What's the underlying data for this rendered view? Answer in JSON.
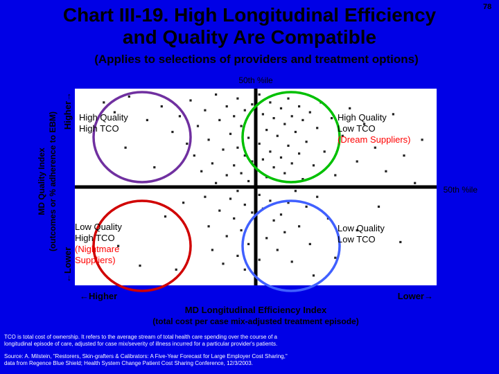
{
  "page_number": "78",
  "title_line1": "Chart III-19. High Longitudinal Efficiency",
  "title_line2": "and Quality Are Compatible",
  "subtitle": "(Applies to selections of providers and treatment options)",
  "chart_data": {
    "type": "scatter",
    "title": "Chart III-19. High Longitudinal Efficiency and Quality Are Compatible",
    "subtitle": "(Applies to selections of providers and treatment options)",
    "xlabel": "MD Longitudinal Efficiency Index",
    "xlabel_sub": "(total cost per case mix-adjusted treatment episode)",
    "ylabel": "MD Quality Index",
    "ylabel_sub": "(outcomes or % adherence to EBM)",
    "x_left_label": "←Higher",
    "x_right_label": "Lower→",
    "y_top_label": "Higher→",
    "y_bottom_label": "←Lower",
    "x_ref_label": "50th %ile",
    "y_ref_label": "50th %ile",
    "xlim": [
      0,
      100
    ],
    "ylim": [
      0,
      100
    ],
    "grid": false,
    "quadrants": [
      {
        "lines": [
          "High Quality",
          "High TCO"
        ],
        "highlight": "",
        "circle_color": "#7030a0",
        "position": "top-left"
      },
      {
        "lines": [
          "High Quality",
          "Low TCO"
        ],
        "highlight": "(Dream Suppliers)",
        "circle_color": "#00c000",
        "position": "top-right"
      },
      {
        "lines": [
          "Low Quality",
          "High TCO"
        ],
        "highlight": "(Nightmare Suppliers)",
        "circle_color": "#d00000",
        "position": "bottom-left"
      },
      {
        "lines": [
          "Low Quality",
          "Low TCO"
        ],
        "highlight": "",
        "circle_color": "#4060ff",
        "position": "bottom-right"
      }
    ],
    "colors": {
      "background": "#0000e6",
      "plot_area": "#ffffff",
      "highlight_text": "#ff0000",
      "reference_lines": "#000000"
    },
    "points": [
      {
        "x": 8,
        "y": 93
      },
      {
        "x": 11,
        "y": 88
      },
      {
        "x": 15,
        "y": 96
      },
      {
        "x": 20,
        "y": 84
      },
      {
        "x": 24,
        "y": 91
      },
      {
        "x": 27,
        "y": 78
      },
      {
        "x": 29,
        "y": 86
      },
      {
        "x": 31,
        "y": 72
      },
      {
        "x": 32,
        "y": 94
      },
      {
        "x": 33,
        "y": 66
      },
      {
        "x": 34,
        "y": 81
      },
      {
        "x": 35,
        "y": 58
      },
      {
        "x": 36,
        "y": 89
      },
      {
        "x": 36,
        "y": 45
      },
      {
        "x": 37,
        "y": 74
      },
      {
        "x": 37,
        "y": 30
      },
      {
        "x": 38,
        "y": 62
      },
      {
        "x": 38,
        "y": 18
      },
      {
        "x": 39,
        "y": 97
      },
      {
        "x": 39,
        "y": 52
      },
      {
        "x": 40,
        "y": 84
      },
      {
        "x": 40,
        "y": 38
      },
      {
        "x": 41,
        "y": 69
      },
      {
        "x": 41,
        "y": 11
      },
      {
        "x": 42,
        "y": 91
      },
      {
        "x": 42,
        "y": 56
      },
      {
        "x": 42,
        "y": 25
      },
      {
        "x": 43,
        "y": 77
      },
      {
        "x": 43,
        "y": 44
      },
      {
        "x": 44,
        "y": 86
      },
      {
        "x": 44,
        "y": 61
      },
      {
        "x": 44,
        "y": 34
      },
      {
        "x": 45,
        "y": 95
      },
      {
        "x": 45,
        "y": 70
      },
      {
        "x": 45,
        "y": 48
      },
      {
        "x": 45,
        "y": 15
      },
      {
        "x": 46,
        "y": 81
      },
      {
        "x": 46,
        "y": 57
      },
      {
        "x": 46,
        "y": 28
      },
      {
        "x": 47,
        "y": 89
      },
      {
        "x": 47,
        "y": 66
      },
      {
        "x": 47,
        "y": 41
      },
      {
        "x": 47,
        "y": 8
      },
      {
        "x": 48,
        "y": 75
      },
      {
        "x": 48,
        "y": 53
      },
      {
        "x": 48,
        "y": 21
      },
      {
        "x": 49,
        "y": 92
      },
      {
        "x": 49,
        "y": 63
      },
      {
        "x": 49,
        "y": 37
      },
      {
        "x": 50,
        "y": 83
      },
      {
        "x": 50,
        "y": 59
      },
      {
        "x": 50,
        "y": 31
      },
      {
        "x": 51,
        "y": 97
      },
      {
        "x": 51,
        "y": 72
      },
      {
        "x": 51,
        "y": 46
      },
      {
        "x": 51,
        "y": 13
      },
      {
        "x": 52,
        "y": 87
      },
      {
        "x": 52,
        "y": 64
      },
      {
        "x": 52,
        "y": 39
      },
      {
        "x": 53,
        "y": 79
      },
      {
        "x": 53,
        "y": 55
      },
      {
        "x": 53,
        "y": 24
      },
      {
        "x": 54,
        "y": 93
      },
      {
        "x": 54,
        "y": 68
      },
      {
        "x": 54,
        "y": 43
      },
      {
        "x": 55,
        "y": 85
      },
      {
        "x": 55,
        "y": 60
      },
      {
        "x": 55,
        "y": 33
      },
      {
        "x": 56,
        "y": 76
      },
      {
        "x": 56,
        "y": 50
      },
      {
        "x": 56,
        "y": 18
      },
      {
        "x": 57,
        "y": 90
      },
      {
        "x": 57,
        "y": 65
      },
      {
        "x": 57,
        "y": 36
      },
      {
        "x": 58,
        "y": 82
      },
      {
        "x": 58,
        "y": 57
      },
      {
        "x": 58,
        "y": 27
      },
      {
        "x": 59,
        "y": 95
      },
      {
        "x": 59,
        "y": 71
      },
      {
        "x": 59,
        "y": 42
      },
      {
        "x": 60,
        "y": 86
      },
      {
        "x": 60,
        "y": 62
      },
      {
        "x": 60,
        "y": 12
      },
      {
        "x": 61,
        "y": 78
      },
      {
        "x": 61,
        "y": 48
      },
      {
        "x": 62,
        "y": 91
      },
      {
        "x": 62,
        "y": 67
      },
      {
        "x": 62,
        "y": 30
      },
      {
        "x": 63,
        "y": 84
      },
      {
        "x": 63,
        "y": 54
      },
      {
        "x": 64,
        "y": 73
      },
      {
        "x": 64,
        "y": 40
      },
      {
        "x": 65,
        "y": 88
      },
      {
        "x": 65,
        "y": 21
      },
      {
        "x": 66,
        "y": 61
      },
      {
        "x": 67,
        "y": 80
      },
      {
        "x": 67,
        "y": 45
      },
      {
        "x": 68,
        "y": 93
      },
      {
        "x": 69,
        "y": 68
      },
      {
        "x": 70,
        "y": 34
      },
      {
        "x": 71,
        "y": 85
      },
      {
        "x": 72,
        "y": 56
      },
      {
        "x": 74,
        "y": 76
      },
      {
        "x": 76,
        "y": 90
      },
      {
        "x": 78,
        "y": 63
      },
      {
        "x": 80,
        "y": 82
      },
      {
        "x": 83,
        "y": 70
      },
      {
        "x": 86,
        "y": 58
      },
      {
        "x": 88,
        "y": 87
      },
      {
        "x": 91,
        "y": 66
      },
      {
        "x": 94,
        "y": 52
      },
      {
        "x": 12,
        "y": 20
      },
      {
        "x": 18,
        "y": 10
      },
      {
        "x": 25,
        "y": 35
      },
      {
        "x": 22,
        "y": 60
      },
      {
        "x": 30,
        "y": 42
      },
      {
        "x": 28,
        "y": 8
      },
      {
        "x": 72,
        "y": 14
      },
      {
        "x": 78,
        "y": 28
      },
      {
        "x": 84,
        "y": 40
      },
      {
        "x": 90,
        "y": 22
      },
      {
        "x": 96,
        "y": 74
      },
      {
        "x": 14,
        "y": 70
      },
      {
        "x": 66,
        "y": 5
      }
    ]
  },
  "notes": {
    "tco_line1": "TCO is total cost of ownership. It refers to the average stream of total health care spending over the course of a",
    "tco_line2": "longitudinal episode of care, adjusted for case mix/severity of illness incurred for a particular provider's patients.",
    "source_line1": "Source: A. Milstein, \"Restorers, Skin-grafters & Calibrators: A Five-Year Forecast for Large Employer Cost Sharing,\"",
    "source_line2": "data from Regence Blue Shield; Health System Change Patient Cost Sharing Conference, 12/3/2003."
  }
}
